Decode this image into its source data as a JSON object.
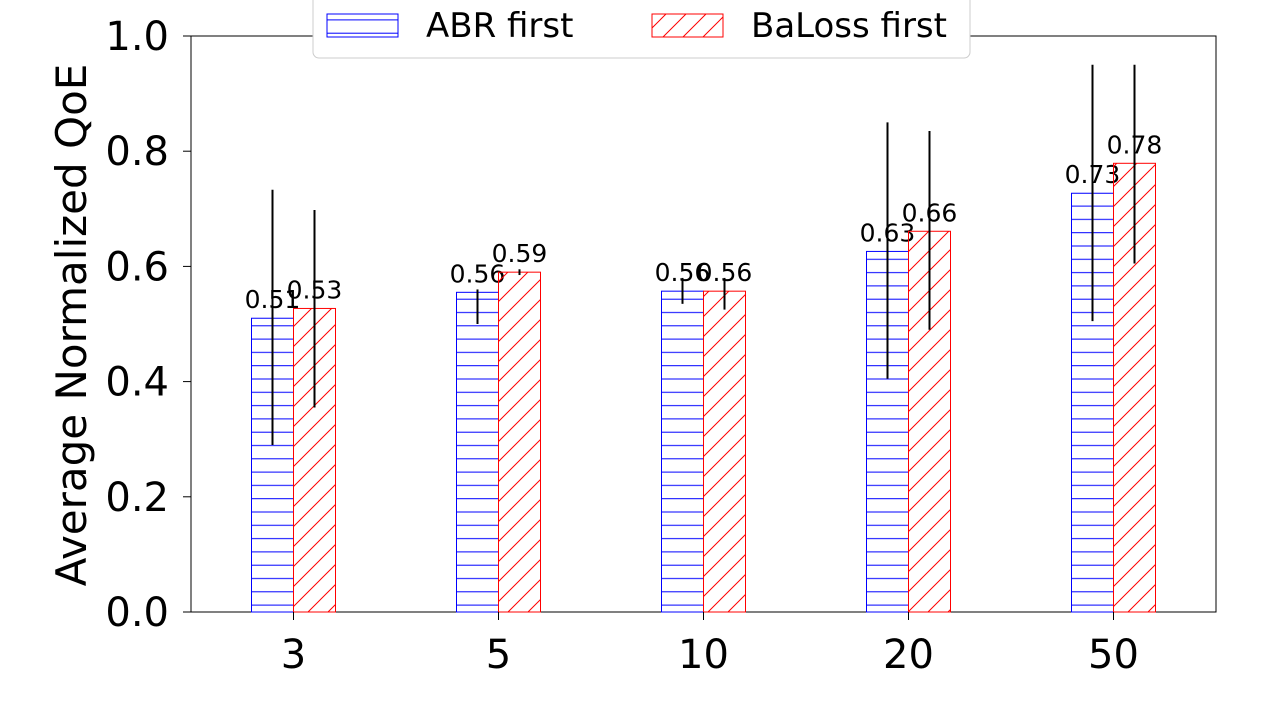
{
  "chart_data": {
    "type": "bar",
    "title": "",
    "xlabel": "",
    "ylabel": "Average Normalized QoE",
    "categories": [
      "3",
      "5",
      "10",
      "20",
      "50"
    ],
    "ylim": [
      0,
      1.0
    ],
    "yticks": [
      "0.0",
      "0.2",
      "0.4",
      "0.6",
      "0.8",
      "1.0"
    ],
    "legend_position": "top-center",
    "grid": false,
    "series": [
      {
        "name": "ABR first",
        "color": "#0000ff",
        "hatch": "horizontal",
        "values": [
          0.51,
          0.555,
          0.557,
          0.626,
          0.727
        ],
        "labels": [
          "0.51",
          "0.56",
          "0.56",
          "0.63",
          "0.73"
        ],
        "err_low": [
          0.29,
          0.5,
          0.535,
          0.405,
          0.505
        ],
        "err_high": [
          0.733,
          0.56,
          0.58,
          0.85,
          0.95
        ]
      },
      {
        "name": "BaLoss first",
        "color": "#ff0000",
        "hatch": "diagonal",
        "values": [
          0.527,
          0.59,
          0.557,
          0.661,
          0.779
        ],
        "labels": [
          "0.53",
          "0.59",
          "0.56",
          "0.66",
          "0.78"
        ],
        "err_low": [
          0.355,
          0.585,
          0.525,
          0.49,
          0.605
        ],
        "err_high": [
          0.698,
          0.595,
          0.58,
          0.835,
          0.95
        ]
      }
    ]
  }
}
